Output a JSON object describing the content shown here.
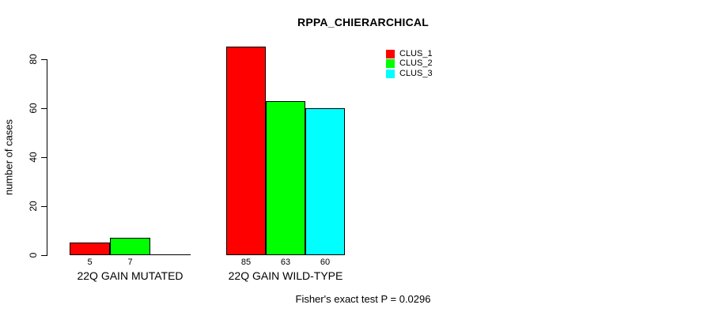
{
  "title": "RPPA_CHIERARCHICAL",
  "chart_data": {
    "type": "bar",
    "title": "RPPA_CHIERARCHICAL",
    "ylabel": "number of cases",
    "ylim": [
      0,
      85
    ],
    "yticks": [
      0,
      20,
      40,
      60,
      80
    ],
    "grid": false,
    "categories": [
      "22Q GAIN MUTATED",
      "22Q GAIN WILD-TYPE"
    ],
    "series": [
      {
        "name": "CLUS_1",
        "color": "#ff0000",
        "values": [
          5,
          85
        ]
      },
      {
        "name": "CLUS_2",
        "color": "#00ff00",
        "values": [
          7,
          63
        ]
      },
      {
        "name": "CLUS_3",
        "color": "#00ffff",
        "values": [
          0,
          60
        ]
      }
    ],
    "bar_labels": [
      [
        "5",
        "7",
        ""
      ],
      [
        "85",
        "63",
        "60"
      ]
    ],
    "legend": {
      "position": "topright",
      "entries": [
        "CLUS_1",
        "CLUS_2",
        "CLUS_3"
      ]
    },
    "annotation": "Fisher's exact test P = 0.0296"
  }
}
